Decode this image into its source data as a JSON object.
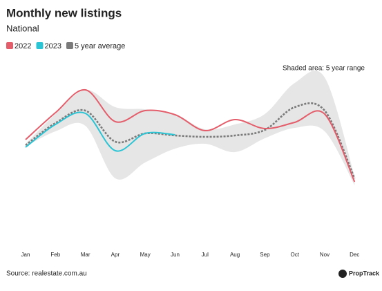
{
  "chart_data": {
    "type": "line",
    "title": "Monthly new listings",
    "subtitle": "National",
    "annotation": "Shaded area: 5 year range",
    "source": "Source: realestate.com.au",
    "brand": "PropTrack",
    "categories": [
      "Jan",
      "Feb",
      "Mar",
      "Apr",
      "May",
      "Jun",
      "Jul",
      "Aug",
      "Sep",
      "Oct",
      "Nov",
      "Dec"
    ],
    "ylim": [
      0,
      260
    ],
    "series": [
      {
        "name": "2022",
        "color": "#e35d6a",
        "style": "solid",
        "values": [
          158,
          197,
          230,
          184,
          200,
          194,
          171,
          187,
          174,
          183,
          195,
          97
        ]
      },
      {
        "name": "2023",
        "color": "#2bc4d4",
        "style": "solid",
        "values": [
          147,
          180,
          196,
          142,
          167,
          165,
          null,
          null,
          null,
          null,
          null,
          null
        ]
      },
      {
        "name": "5 year average",
        "color": "#7a7a7a",
        "style": "dotted",
        "values": [
          150,
          182,
          200,
          155,
          167,
          164,
          162,
          164,
          172,
          205,
          200,
          102
        ]
      }
    ],
    "range": {
      "color": "#e6e6e6",
      "upper": [
        152,
        195,
        230,
        205,
        202,
        195,
        173,
        180,
        195,
        240,
        248,
        105
      ],
      "lower": [
        148,
        170,
        178,
        102,
        125,
        145,
        152,
        140,
        160,
        175,
        170,
        92
      ]
    }
  }
}
